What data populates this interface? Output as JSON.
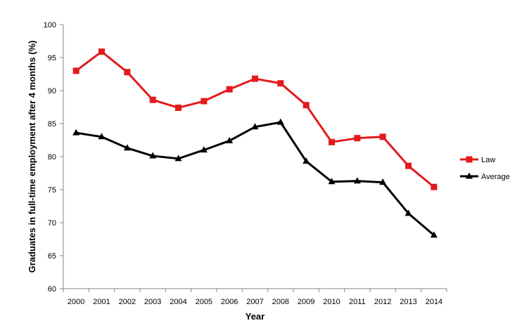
{
  "chart_data": {
    "type": "line",
    "title": "",
    "xlabel": "Year",
    "ylabel": "Graduates in full-time employment after 4 months (%)",
    "ylim": [
      60,
      100
    ],
    "yticks": [
      60,
      65,
      70,
      75,
      80,
      85,
      90,
      95,
      100
    ],
    "grid": false,
    "legend_position": "right",
    "x": [
      "2000",
      "2001",
      "2002",
      "2003",
      "2004",
      "2005",
      "2006",
      "2007",
      "2008",
      "2009",
      "2010",
      "2011",
      "2012",
      "2013",
      "2014"
    ],
    "series": [
      {
        "name": "Law",
        "color": "#e31a1c",
        "marker": "square",
        "values": [
          93.0,
          95.9,
          92.8,
          88.6,
          87.4,
          88.4,
          90.2,
          91.8,
          91.1,
          87.8,
          82.2,
          82.8,
          83.0,
          78.6,
          75.4
        ]
      },
      {
        "name": "Average",
        "color": "#000000",
        "marker": "triangle",
        "values": [
          83.6,
          83.0,
          81.3,
          80.1,
          79.7,
          81.0,
          82.4,
          84.5,
          85.2,
          79.3,
          76.2,
          76.3,
          76.1,
          71.4,
          68.1
        ]
      }
    ]
  }
}
